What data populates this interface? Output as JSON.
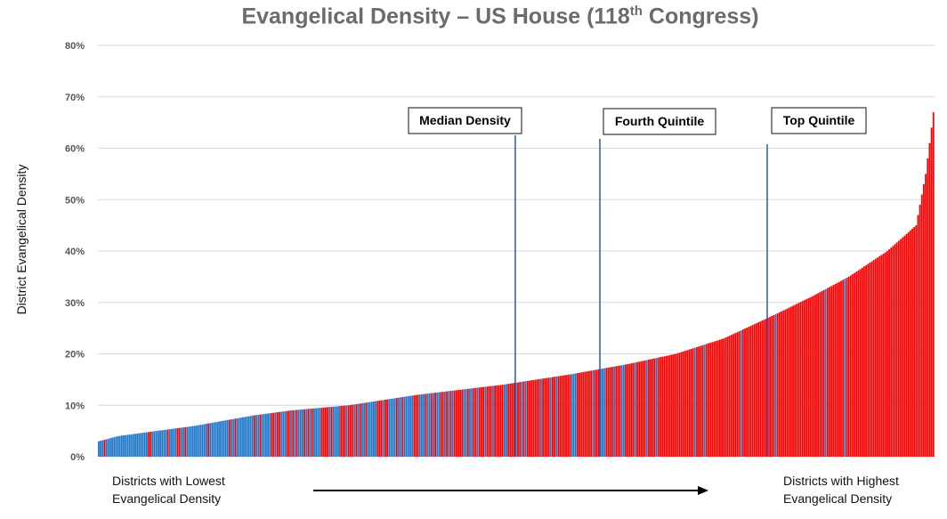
{
  "chart_data": {
    "type": "bar",
    "title": "Evangelical Density – US House (118",
    "title_sup": "th",
    "title_tail": " Congress)",
    "xlabel": "",
    "ylabel": "District Evangelical Density",
    "ylim": [
      0,
      80
    ],
    "yticks": [
      "0%",
      "10%",
      "20%",
      "30%",
      "40%",
      "50%",
      "60%",
      "70%",
      "80%"
    ],
    "grid": true,
    "district_count": 435,
    "series_colors": {
      "dem": "#1f77c8",
      "rep": "#ff0000"
    },
    "sorted_density_profile": [
      {
        "rank": 0,
        "value": 3
      },
      {
        "rank": 10,
        "value": 4
      },
      {
        "rank": 30,
        "value": 5
      },
      {
        "rank": 50,
        "value": 6
      },
      {
        "rank": 65,
        "value": 7
      },
      {
        "rank": 80,
        "value": 8
      },
      {
        "rank": 100,
        "value": 9
      },
      {
        "rank": 130,
        "value": 10
      },
      {
        "rank": 165,
        "value": 12
      },
      {
        "rank": 210,
        "value": 14
      },
      {
        "rank": 245,
        "value": 16
      },
      {
        "rank": 275,
        "value": 18
      },
      {
        "rank": 300,
        "value": 20
      },
      {
        "rank": 325,
        "value": 23
      },
      {
        "rank": 348,
        "value": 27
      },
      {
        "rank": 370,
        "value": 31
      },
      {
        "rank": 390,
        "value": 35
      },
      {
        "rank": 410,
        "value": 40
      },
      {
        "rank": 425,
        "value": 45
      },
      {
        "rank": 430,
        "value": 55
      },
      {
        "rank": 434,
        "value": 67
      }
    ],
    "annotations": [
      {
        "label": "Median Density",
        "rank": 217
      },
      {
        "label": "Fourth Quintile",
        "rank": 261
      },
      {
        "label": "Top Quintile",
        "rank": 348
      }
    ],
    "footnotes": {
      "left_line1": "Districts with Lowest",
      "left_line2": "Evangelical Density",
      "right_line1": "Districts with Highest",
      "right_line2": "Evangelical Density"
    }
  }
}
